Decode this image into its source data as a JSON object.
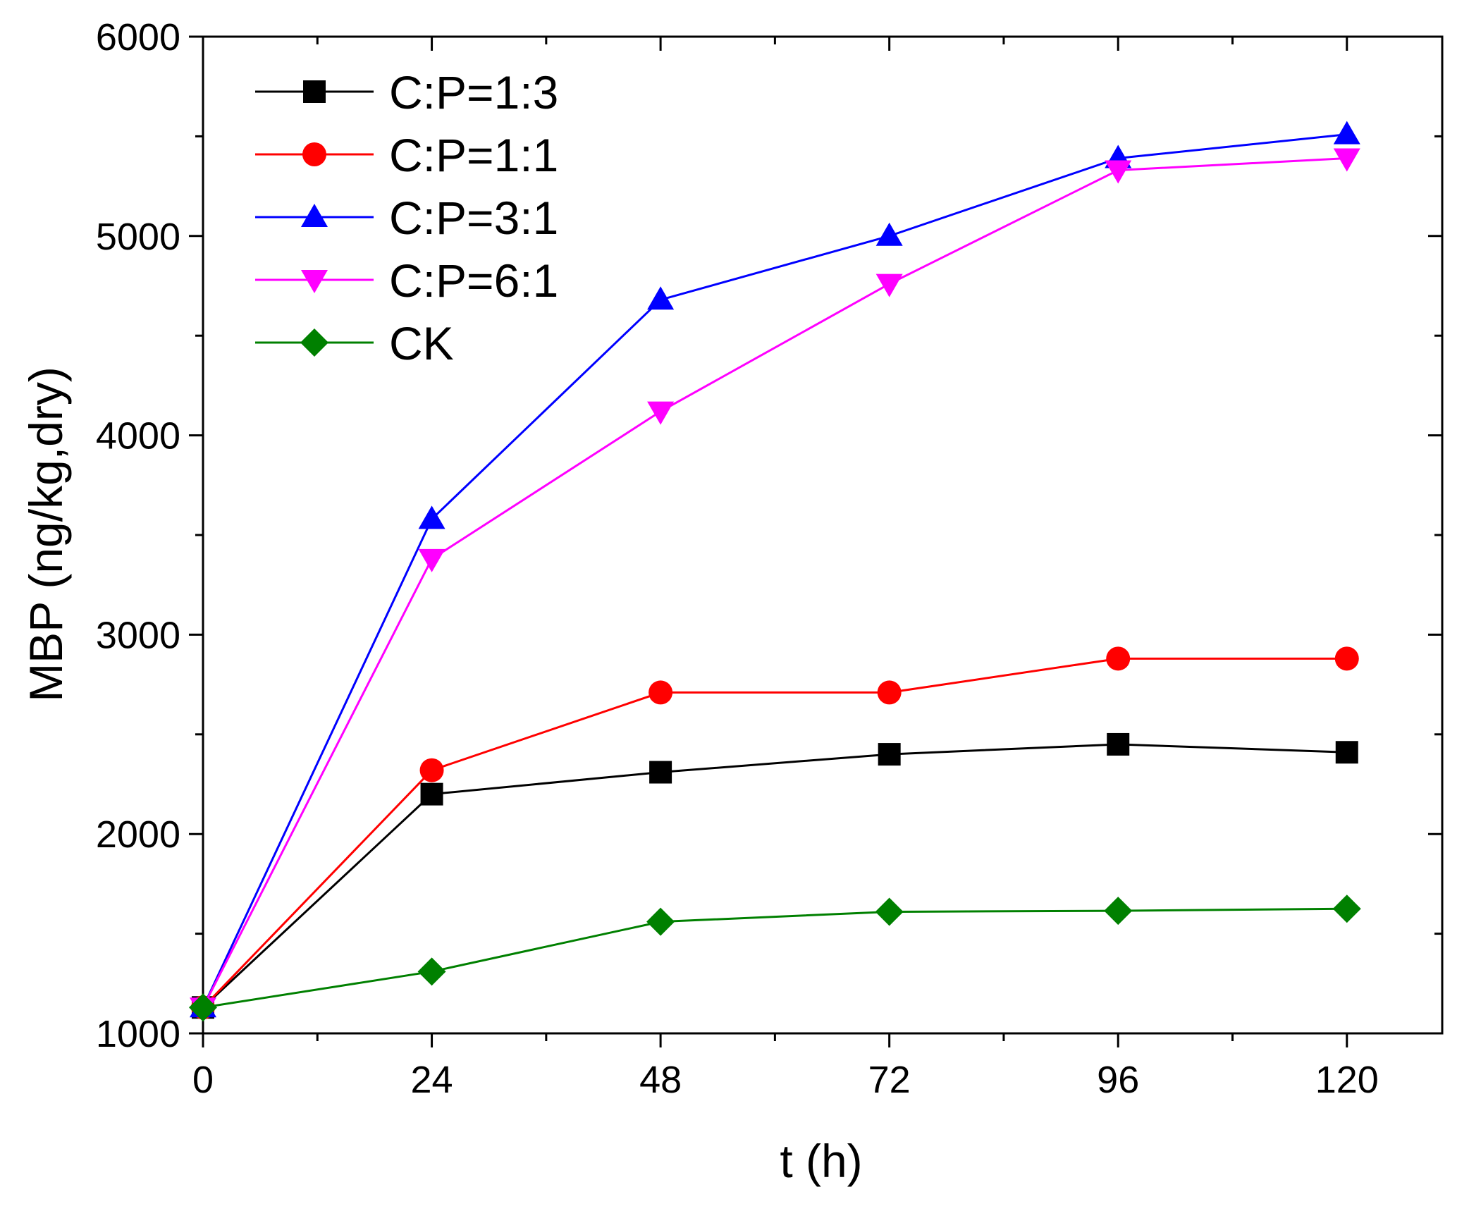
{
  "chart_data": {
    "type": "line",
    "title": "",
    "xlabel": "t (h)",
    "ylabel": "MBP (ng/kg,dry)",
    "xlim": [
      0,
      130
    ],
    "ylim": [
      1000,
      6000
    ],
    "x": [
      0,
      24,
      48,
      72,
      96,
      120
    ],
    "xticks": [
      "0",
      "24",
      "48",
      "72",
      "96",
      "120"
    ],
    "xticks_values": [
      0,
      24,
      48,
      72,
      96,
      120
    ],
    "xminor_values": [
      12,
      36,
      60,
      84,
      108
    ],
    "yticks": [
      "1000",
      "2000",
      "3000",
      "4000",
      "5000",
      "6000"
    ],
    "yticks_values": [
      1000,
      2000,
      3000,
      4000,
      5000,
      6000
    ],
    "yminor_values": [
      1500,
      2500,
      3500,
      4500,
      5500
    ],
    "grid": false,
    "legend_position": "top-left",
    "series": [
      {
        "name": "C:P=1:3",
        "color": "#000000",
        "marker": "square",
        "values": [
          1130,
          2200,
          2310,
          2400,
          2450,
          2410
        ]
      },
      {
        "name": "C:P=1:1",
        "color": "#ff0000",
        "marker": "circle",
        "values": [
          1130,
          2320,
          2710,
          2710,
          2880,
          2880
        ]
      },
      {
        "name": "C:P=3:1",
        "color": "#0000ff",
        "marker": "triangle-up",
        "values": [
          1130,
          3580,
          4680,
          5000,
          5390,
          5510
        ]
      },
      {
        "name": "C:P=6:1",
        "color": "#ff00ff",
        "marker": "triangle-down",
        "values": [
          1130,
          3380,
          4120,
          4760,
          5330,
          5390
        ]
      },
      {
        "name": "CK",
        "color": "#008000",
        "marker": "diamond",
        "values": [
          1130,
          1310,
          1560,
          1610,
          1615,
          1625
        ]
      }
    ]
  }
}
